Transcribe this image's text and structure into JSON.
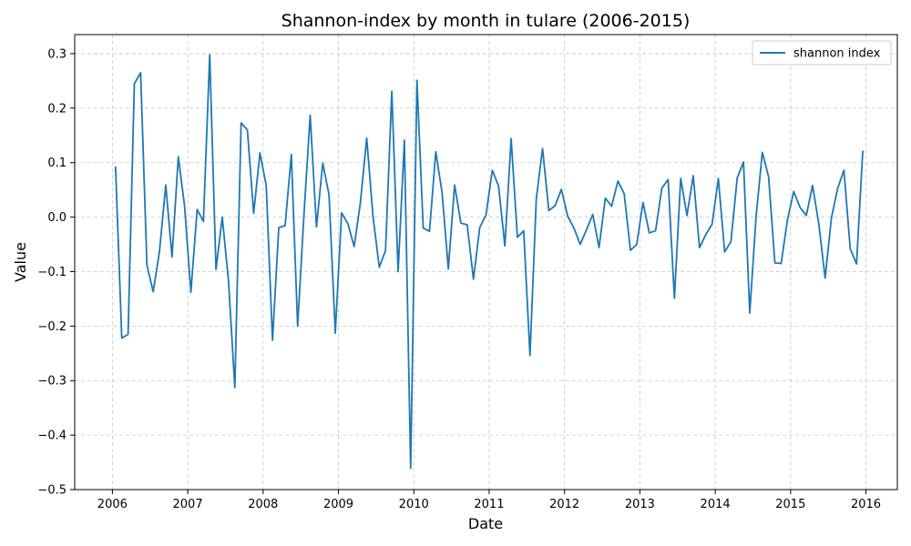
{
  "chart_data": {
    "type": "line",
    "title": "Shannon-index by month in tulare (2006-2015)",
    "xlabel": "Date",
    "ylabel": "Value",
    "xlim": [
      "2005-07-01",
      "2016-06-01"
    ],
    "ylim": [
      -0.5,
      0.335
    ],
    "x_ticks": [
      "2006",
      "2007",
      "2008",
      "2009",
      "2010",
      "2011",
      "2012",
      "2013",
      "2014",
      "2015",
      "2016"
    ],
    "y_ticks": [
      "0.3",
      "0.2",
      "0.1",
      "0.0",
      "−0.1",
      "−0.2",
      "−0.3",
      "−0.4",
      "−0.5"
    ],
    "y_tick_values": [
      0.3,
      0.2,
      0.1,
      0.0,
      -0.1,
      -0.2,
      -0.3,
      -0.4,
      -0.5
    ],
    "grid": true,
    "legend_position": "top-right",
    "series": [
      {
        "name": "shannon index",
        "color": "#1f77b4",
        "x": [
          "2006-01",
          "2006-02",
          "2006-03",
          "2006-04",
          "2006-05",
          "2006-06",
          "2006-07",
          "2006-08",
          "2006-09",
          "2006-10",
          "2006-11",
          "2006-12",
          "2007-01",
          "2007-02",
          "2007-03",
          "2007-04",
          "2007-05",
          "2007-06",
          "2007-07",
          "2007-08",
          "2007-09",
          "2007-10",
          "2007-11",
          "2007-12",
          "2008-01",
          "2008-02",
          "2008-03",
          "2008-04",
          "2008-05",
          "2008-06",
          "2008-07",
          "2008-08",
          "2008-09",
          "2008-10",
          "2008-11",
          "2008-12",
          "2009-01",
          "2009-02",
          "2009-03",
          "2009-04",
          "2009-05",
          "2009-06",
          "2009-07",
          "2009-08",
          "2009-09",
          "2009-10",
          "2009-11",
          "2009-12",
          "2010-01",
          "2010-02",
          "2010-03",
          "2010-04",
          "2010-05",
          "2010-06",
          "2010-07",
          "2010-08",
          "2010-09",
          "2010-10",
          "2010-11",
          "2010-12",
          "2011-01",
          "2011-02",
          "2011-03",
          "2011-04",
          "2011-05",
          "2011-06",
          "2011-07",
          "2011-08",
          "2011-09",
          "2011-10",
          "2011-11",
          "2011-12",
          "2012-01",
          "2012-02",
          "2012-03",
          "2012-04",
          "2012-05",
          "2012-06",
          "2012-07",
          "2012-08",
          "2012-09",
          "2012-10",
          "2012-11",
          "2012-12",
          "2013-01",
          "2013-02",
          "2013-03",
          "2013-04",
          "2013-05",
          "2013-06",
          "2013-07",
          "2013-08",
          "2013-09",
          "2013-10",
          "2013-11",
          "2013-12",
          "2014-01",
          "2014-02",
          "2014-03",
          "2014-04",
          "2014-05",
          "2014-06",
          "2014-07",
          "2014-08",
          "2014-09",
          "2014-10",
          "2014-11",
          "2014-12",
          "2015-01",
          "2015-02",
          "2015-03",
          "2015-04",
          "2015-05",
          "2015-06",
          "2015-07",
          "2015-08",
          "2015-09",
          "2015-10",
          "2015-11",
          "2015-12"
        ],
        "values": [
          0.093,
          -0.222,
          -0.215,
          0.245,
          0.265,
          -0.088,
          -0.137,
          -0.063,
          0.059,
          -0.073,
          0.111,
          0.02,
          -0.138,
          0.014,
          -0.008,
          0.298,
          -0.096,
          0.0,
          -0.118,
          -0.313,
          0.173,
          0.16,
          0.007,
          0.118,
          0.058,
          -0.226,
          -0.019,
          -0.016,
          0.115,
          -0.2,
          0.003,
          0.187,
          -0.018,
          0.099,
          0.041,
          -0.213,
          0.008,
          -0.012,
          -0.054,
          0.027,
          0.145,
          0.002,
          -0.092,
          -0.061,
          0.231,
          -0.1,
          0.141,
          -0.461,
          0.251,
          -0.02,
          -0.026,
          0.12,
          0.045,
          -0.095,
          0.059,
          -0.011,
          -0.014,
          -0.114,
          -0.019,
          0.004,
          0.086,
          0.057,
          -0.053,
          0.144,
          -0.037,
          -0.025,
          -0.254,
          0.033,
          0.126,
          0.012,
          0.021,
          0.051,
          0.002,
          -0.02,
          -0.05,
          -0.023,
          0.005,
          -0.056,
          0.035,
          0.02,
          0.066,
          0.043,
          -0.061,
          -0.05,
          0.027,
          -0.029,
          -0.025,
          0.053,
          0.069,
          -0.149,
          0.071,
          0.003,
          0.076,
          -0.056,
          -0.032,
          -0.013,
          0.071,
          -0.064,
          -0.045,
          0.072,
          0.101,
          -0.176,
          0.0,
          0.119,
          0.074,
          -0.084,
          -0.085,
          -0.005,
          0.047,
          0.018,
          0.003,
          0.058,
          -0.013,
          -0.112,
          -0.002,
          0.053,
          0.086,
          -0.058,
          -0.086,
          0.122
        ]
      }
    ]
  }
}
